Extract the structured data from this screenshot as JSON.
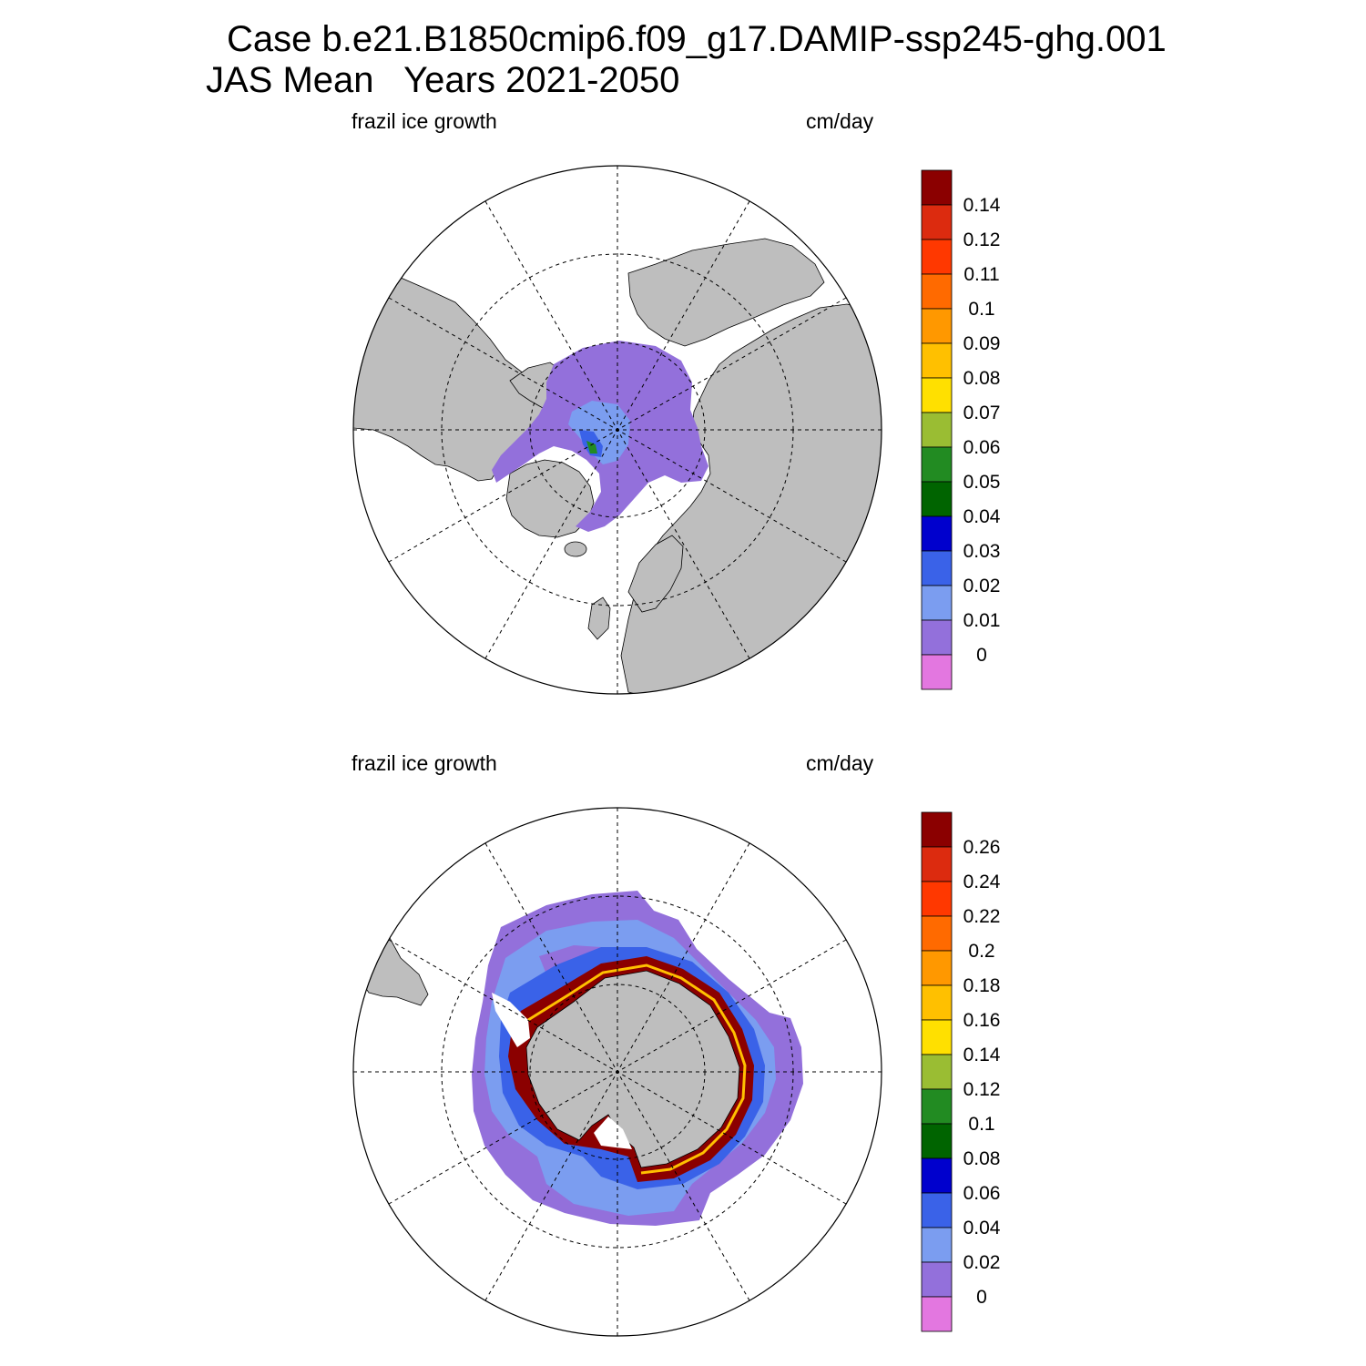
{
  "header": {
    "line1": "Case b.e21.B1850cmip6.f09_g17.DAMIP-ssp245-ghg.001",
    "line2": "JAS Mean   Years 2021-2050"
  },
  "colors": {
    "land": "#bebebe",
    "no_data": "#ffffff",
    "palette": [
      "#e377e0",
      "#9370db",
      "#7b9df0",
      "#3a62e8",
      "#0000cd",
      "#006400",
      "#228b22",
      "#9abd33",
      "#ffe000",
      "#ffc000",
      "#ff9800",
      "#ff6a00",
      "#ff3800",
      "#dc2b0f",
      "#8b0000"
    ]
  },
  "panels": [
    {
      "hemisphere": "north",
      "left_label": "frazil ice growth",
      "right_label": "cm/day",
      "colorbar": {
        "labels": [
          "0",
          "0.01",
          "0.02",
          "0.03",
          "0.04",
          "0.05",
          "0.06",
          "0.07",
          "0.08",
          "0.09",
          "0.1",
          "0.11",
          "0.12",
          "0.14"
        ]
      }
    },
    {
      "hemisphere": "south",
      "left_label": "frazil ice growth",
      "right_label": "cm/day",
      "colorbar": {
        "labels": [
          "0",
          "0.02",
          "0.04",
          "0.06",
          "0.08",
          "0.1",
          "0.12",
          "0.14",
          "0.16",
          "0.18",
          "0.2",
          "0.22",
          "0.24",
          "0.26"
        ]
      }
    }
  ]
}
